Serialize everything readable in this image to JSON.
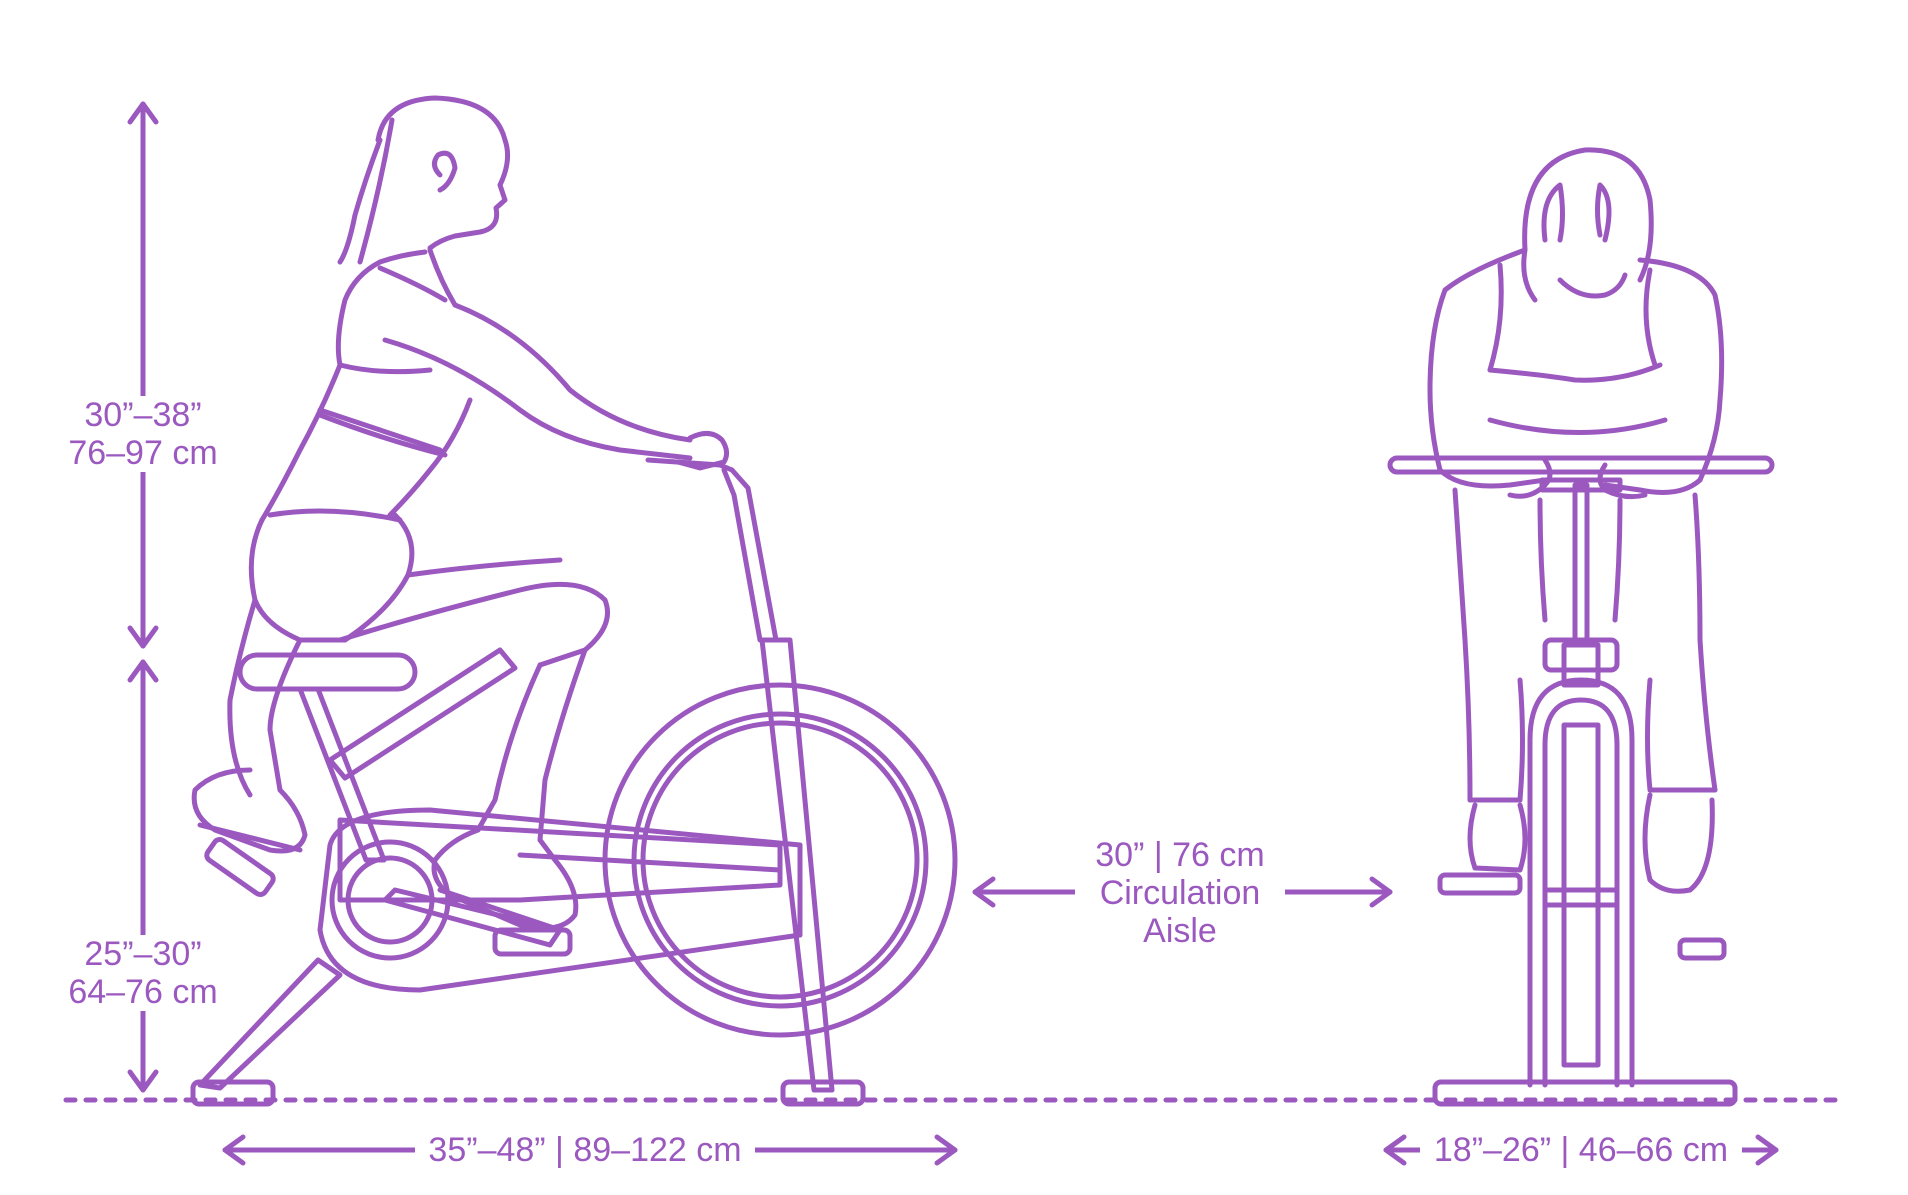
{
  "colors": {
    "stroke": "#9b59c0",
    "background": "#ffffff"
  },
  "labels": {
    "upper_height_in": "30”–38”",
    "upper_height_cm": "76–97 cm",
    "lower_height_in": "25”–30”",
    "lower_height_cm": "64–76 cm",
    "bike_length": "35”–48” | 89–122 cm",
    "aisle_dim": "30” | 76 cm",
    "aisle_line1": "Circulation",
    "aisle_line2": "Aisle",
    "bike_width": "18”–26” | 46–66 cm"
  },
  "figures": {
    "side_view": "rider-side-view",
    "front_view": "rider-front-view"
  }
}
